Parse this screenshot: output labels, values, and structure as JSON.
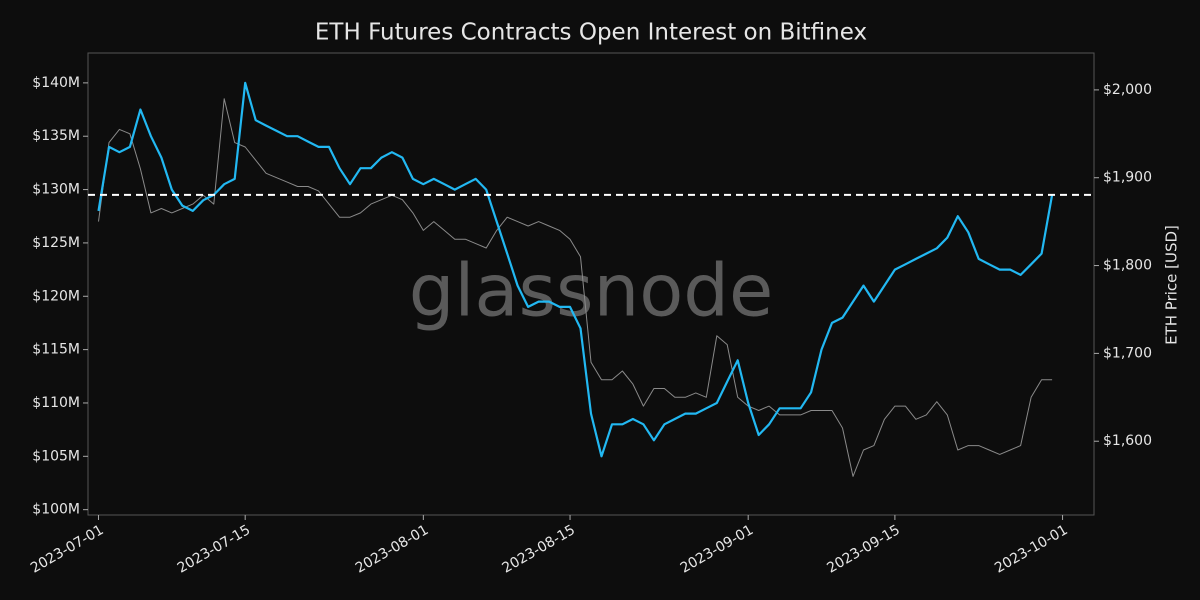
{
  "chart_data": {
    "type": "line",
    "title": "ETH Futures Contracts Open Interest on Bitfinex",
    "y2_label": "ETH Price [USD]",
    "watermark": "glassnode",
    "x": [
      "2023-07-01",
      "2023-07-02",
      "2023-07-03",
      "2023-07-04",
      "2023-07-05",
      "2023-07-06",
      "2023-07-07",
      "2023-07-08",
      "2023-07-09",
      "2023-07-10",
      "2023-07-11",
      "2023-07-12",
      "2023-07-13",
      "2023-07-14",
      "2023-07-15",
      "2023-07-16",
      "2023-07-17",
      "2023-07-18",
      "2023-07-19",
      "2023-07-20",
      "2023-07-21",
      "2023-07-22",
      "2023-07-23",
      "2023-07-24",
      "2023-07-25",
      "2023-07-26",
      "2023-07-27",
      "2023-07-28",
      "2023-07-29",
      "2023-07-30",
      "2023-07-31",
      "2023-08-01",
      "2023-08-02",
      "2023-08-03",
      "2023-08-04",
      "2023-08-05",
      "2023-08-06",
      "2023-08-07",
      "2023-08-08",
      "2023-08-09",
      "2023-08-10",
      "2023-08-11",
      "2023-08-12",
      "2023-08-13",
      "2023-08-14",
      "2023-08-15",
      "2023-08-16",
      "2023-08-17",
      "2023-08-18",
      "2023-08-19",
      "2023-08-20",
      "2023-08-21",
      "2023-08-22",
      "2023-08-23",
      "2023-08-24",
      "2023-08-25",
      "2023-08-26",
      "2023-08-27",
      "2023-08-28",
      "2023-08-29",
      "2023-08-30",
      "2023-08-31",
      "2023-09-01",
      "2023-09-02",
      "2023-09-03",
      "2023-09-04",
      "2023-09-05",
      "2023-09-06",
      "2023-09-07",
      "2023-09-08",
      "2023-09-09",
      "2023-09-10",
      "2023-09-11",
      "2023-09-12",
      "2023-09-13",
      "2023-09-14",
      "2023-09-15",
      "2023-09-16",
      "2023-09-17",
      "2023-09-18",
      "2023-09-19",
      "2023-09-20",
      "2023-09-21",
      "2023-09-22",
      "2023-09-23",
      "2023-09-24",
      "2023-09-25",
      "2023-09-26",
      "2023-09-27",
      "2023-09-28",
      "2023-09-29",
      "2023-09-30"
    ],
    "series": [
      {
        "color": "#22b8f2",
        "axis": "y",
        "values": [
          128,
          134,
          133.5,
          134,
          137.5,
          135,
          133,
          130,
          128.5,
          128,
          129,
          129.5,
          130.5,
          131,
          140,
          136.5,
          136,
          135.5,
          135,
          135,
          134.5,
          134,
          134,
          132,
          130.5,
          132,
          132,
          133,
          133.5,
          133,
          131,
          130.5,
          131,
          130.5,
          130,
          130.5,
          131,
          130,
          127,
          124,
          121,
          119,
          119.5,
          119.5,
          119,
          119,
          117,
          109,
          105,
          108,
          108,
          108.5,
          108,
          106.5,
          108,
          108.5,
          109,
          109,
          109.5,
          110,
          112,
          114,
          110,
          107,
          108,
          109.5,
          109.5,
          109.5,
          111,
          115,
          117.5,
          118,
          119.5,
          121,
          119.5,
          121,
          122.5,
          123,
          123.5,
          124,
          124.5,
          125.5,
          127.5,
          126,
          123.5,
          123,
          122.5,
          122.5,
          122,
          123,
          124,
          129.5
        ]
      },
      {
        "color": "#8a8a8a",
        "axis": "y2",
        "values": [
          1850,
          1940,
          1955,
          1950,
          1910,
          1860,
          1865,
          1860,
          1865,
          1870,
          1880,
          1870,
          1990,
          1940,
          1935,
          1920,
          1905,
          1900,
          1895,
          1890,
          1890,
          1885,
          1870,
          1855,
          1855,
          1860,
          1870,
          1875,
          1880,
          1875,
          1860,
          1840,
          1850,
          1840,
          1830,
          1830,
          1825,
          1820,
          1840,
          1855,
          1850,
          1845,
          1850,
          1845,
          1840,
          1830,
          1810,
          1690,
          1670,
          1670,
          1680,
          1665,
          1640,
          1660,
          1660,
          1650,
          1650,
          1655,
          1650,
          1720,
          1710,
          1650,
          1640,
          1635,
          1640,
          1630,
          1630,
          1630,
          1635,
          1635,
          1635,
          1615,
          1560,
          1590,
          1595,
          1625,
          1640,
          1640,
          1625,
          1630,
          1645,
          1630,
          1590,
          1595,
          1595,
          1590,
          1585,
          1590,
          1595,
          1650,
          1670,
          1670
        ]
      }
    ],
    "hline": 129.5,
    "xlim": [
      "2023-06-30",
      "2023-10-04"
    ],
    "xticks": [
      "2023-07-01",
      "2023-07-15",
      "2023-08-01",
      "2023-08-15",
      "2023-09-01",
      "2023-09-15",
      "2023-10-01"
    ],
    "ylim": [
      99.5,
      142.8
    ],
    "yticks": [
      {
        "value": 100,
        "label": "$100M"
      },
      {
        "value": 105,
        "label": "$105M"
      },
      {
        "value": 110,
        "label": "$110M"
      },
      {
        "value": 115,
        "label": "$115M"
      },
      {
        "value": 120,
        "label": "$120M"
      },
      {
        "value": 125,
        "label": "$125M"
      },
      {
        "value": 130,
        "label": "$130M"
      },
      {
        "value": 135,
        "label": "$135M"
      },
      {
        "value": 140,
        "label": "$140M"
      }
    ],
    "y2lim": [
      1516,
      2042
    ],
    "y2ticks": [
      {
        "value": 1600,
        "label": "$1,600"
      },
      {
        "value": 1700,
        "label": "$1,700"
      },
      {
        "value": 1800,
        "label": "$1,800"
      },
      {
        "value": 1900,
        "label": "$1,900"
      },
      {
        "value": 2000,
        "label": "$2,000"
      }
    ]
  }
}
